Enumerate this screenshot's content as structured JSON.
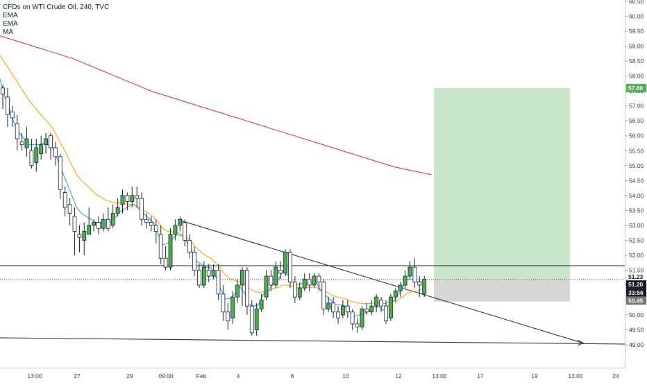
{
  "chart_data": {
    "type": "candlestick",
    "title": "CFDs on WTI Crude Oil, 240, TVC",
    "indicators": [
      "EMA",
      "EMA",
      "MA"
    ],
    "y_ticks": [
      "60.50",
      "60.00",
      "59.50",
      "59.00",
      "58.50",
      "58.00",
      "57.50",
      "57.00",
      "56.50",
      "56.00",
      "55.50",
      "55.00",
      "54.50",
      "54.00",
      "53.50",
      "53.00",
      "52.50",
      "52.00",
      "51.50",
      "51.00",
      "50.50",
      "50.00",
      "49.50",
      "49.00"
    ],
    "ylim": [
      48.85,
      60.75
    ],
    "x_ticks": [
      "13:00",
      "27",
      "29",
      "09:00",
      "Feb",
      "4",
      "6",
      "10",
      "12",
      "13:00",
      "17",
      "19",
      "13:00",
      "24"
    ],
    "price_tags": {
      "target": "57.60",
      "current": "51.23",
      "entry": "51.20",
      "countdown": "33:56",
      "stop": "50.45"
    },
    "position": {
      "target": 57.6,
      "entry": 51.2,
      "stop": 50.45
    },
    "horizontal_level": 51.65,
    "colors": {
      "up": "#4caf50",
      "down": "#ffffff",
      "wick": "#131722",
      "ema_fast": "#2196f3",
      "ema_slow": "#ff9800",
      "ma": "#c62828",
      "profit_zone": "#c8e6c9",
      "loss_zone": "#d6d6d6",
      "target_tag": "#4caf50",
      "stop_tag": "#757575",
      "line": "#131722"
    },
    "candles": [
      [
        57.6,
        57.4,
        57.7,
        56.9
      ],
      [
        57.3,
        56.7,
        57.6,
        56.3
      ],
      [
        56.8,
        56.6,
        57.0,
        56.3
      ],
      [
        56.4,
        55.9,
        56.7,
        55.5
      ],
      [
        55.8,
        55.7,
        56.1,
        55.5
      ],
      [
        55.6,
        55.9,
        56.3,
        55.3
      ],
      [
        55.5,
        55.0,
        55.9,
        54.9
      ],
      [
        55.1,
        55.6,
        55.9,
        54.8
      ],
      [
        55.4,
        55.7,
        56.0,
        55.2
      ],
      [
        55.7,
        55.9,
        56.1,
        55.4
      ],
      [
        56.0,
        55.6,
        56.1,
        55.2
      ],
      [
        55.6,
        55.3,
        55.8,
        55.0
      ],
      [
        55.3,
        54.2,
        55.4,
        53.9
      ],
      [
        54.1,
        53.6,
        54.3,
        53.3
      ],
      [
        53.7,
        53.4,
        53.9,
        53.0
      ],
      [
        53.3,
        52.8,
        53.6,
        52.0
      ],
      [
        52.7,
        52.6,
        53.0,
        52.1
      ],
      [
        52.5,
        52.8,
        53.1,
        52.0
      ],
      [
        52.7,
        53.0,
        53.6,
        52.7
      ],
      [
        53.0,
        53.1,
        53.2,
        52.8
      ],
      [
        53.1,
        52.9,
        53.3,
        52.7
      ],
      [
        52.9,
        53.2,
        53.4,
        52.8
      ],
      [
        53.2,
        52.9,
        53.6,
        52.8
      ],
      [
        53.0,
        53.4,
        53.7,
        52.9
      ],
      [
        53.4,
        53.6,
        53.9,
        53.3
      ],
      [
        53.7,
        54.0,
        54.2,
        53.4
      ],
      [
        54.0,
        53.8,
        54.1,
        53.5
      ],
      [
        53.8,
        54.0,
        54.3,
        53.6
      ],
      [
        54.0,
        53.9,
        54.3,
        53.6
      ],
      [
        53.9,
        53.2,
        54.1,
        53.0
      ],
      [
        53.2,
        53.1,
        53.4,
        52.9
      ],
      [
        53.1,
        53.0,
        53.3,
        52.8
      ],
      [
        53.0,
        52.8,
        53.2,
        52.4
      ],
      [
        52.7,
        51.9,
        53.0,
        51.7
      ],
      [
        51.9,
        51.6,
        52.3,
        51.5
      ],
      [
        51.6,
        52.7,
        52.9,
        51.5
      ],
      [
        52.7,
        53.0,
        53.2,
        52.5
      ],
      [
        53.0,
        53.2,
        53.3,
        52.8
      ],
      [
        53.1,
        52.5,
        53.2,
        52.3
      ],
      [
        52.5,
        52.1,
        52.7,
        51.9
      ],
      [
        52.1,
        51.5,
        52.3,
        51.3
      ],
      [
        51.5,
        51.0,
        51.7,
        50.9
      ],
      [
        51.0,
        51.6,
        51.8,
        50.9
      ],
      [
        51.5,
        51.3,
        51.7,
        51.1
      ],
      [
        51.3,
        51.5,
        51.7,
        51.2
      ],
      [
        51.5,
        50.7,
        51.7,
        50.5
      ],
      [
        50.7,
        50.1,
        51.0,
        49.8
      ],
      [
        50.1,
        49.8,
        50.4,
        49.5
      ],
      [
        49.9,
        50.6,
        50.8,
        49.7
      ],
      [
        50.6,
        51.0,
        51.2,
        50.4
      ],
      [
        51.0,
        51.5,
        51.6,
        50.3
      ],
      [
        51.5,
        50.3,
        51.6,
        50.0
      ],
      [
        50.3,
        49.4,
        50.5,
        49.3
      ],
      [
        49.5,
        50.2,
        50.4,
        49.3
      ],
      [
        50.2,
        50.5,
        50.7,
        50.1
      ],
      [
        50.6,
        51.3,
        51.5,
        50.5
      ],
      [
        51.3,
        51.0,
        51.5,
        50.8
      ],
      [
        51.0,
        51.6,
        51.8,
        50.9
      ],
      [
        51.5,
        51.4,
        51.8,
        51.2
      ],
      [
        51.4,
        52.1,
        52.2,
        51.3
      ],
      [
        52.1,
        51.1,
        52.2,
        50.9
      ],
      [
        51.1,
        50.6,
        51.3,
        50.4
      ],
      [
        50.6,
        50.9,
        51.1,
        50.5
      ],
      [
        50.9,
        51.2,
        51.4,
        50.8
      ],
      [
        51.2,
        51.0,
        51.4,
        50.8
      ],
      [
        51.0,
        51.3,
        51.4,
        50.9
      ],
      [
        51.3,
        51.1,
        51.4,
        50.8
      ],
      [
        51.1,
        50.2,
        51.2,
        50.0
      ],
      [
        50.2,
        50.4,
        50.6,
        50.1
      ],
      [
        50.4,
        50.1,
        50.6,
        49.9
      ],
      [
        50.1,
        49.9,
        50.3,
        49.7
      ],
      [
        50.0,
        50.3,
        50.5,
        49.9
      ],
      [
        50.3,
        50.1,
        50.5,
        49.9
      ],
      [
        50.1,
        49.7,
        50.2,
        49.5
      ],
      [
        49.7,
        49.6,
        49.9,
        49.4
      ],
      [
        49.6,
        50.2,
        50.3,
        49.5
      ],
      [
        50.2,
        50.1,
        50.4,
        50.0
      ],
      [
        50.1,
        50.3,
        50.5,
        50.0
      ],
      [
        50.3,
        50.6,
        50.7,
        50.1
      ],
      [
        50.5,
        50.3,
        50.6,
        50.1
      ],
      [
        50.3,
        49.8,
        50.5,
        49.7
      ],
      [
        49.9,
        50.6,
        50.7,
        49.8
      ],
      [
        50.6,
        50.8,
        50.9,
        50.4
      ],
      [
        50.8,
        51.0,
        51.1,
        50.6
      ],
      [
        51.0,
        51.3,
        51.5,
        50.9
      ],
      [
        51.3,
        51.6,
        51.8,
        51.2
      ],
      [
        51.6,
        51.1,
        51.9,
        50.9
      ],
      [
        51.1,
        51.0,
        51.3,
        50.6
      ],
      [
        50.7,
        51.2,
        51.3,
        50.6
      ]
    ],
    "ema_fast": [
      57.9,
      57.3,
      56.9,
      56.4,
      56.1,
      55.9,
      55.7,
      55.7,
      55.7,
      55.75,
      55.72,
      55.6,
      55.2,
      54.8,
      54.4,
      54.0,
      53.6,
      53.4,
      53.3,
      53.2,
      53.1,
      53.1,
      53.05,
      53.1,
      53.25,
      53.45,
      53.55,
      53.65,
      53.7,
      53.55,
      53.4,
      53.25,
      53.1,
      52.7,
      52.35,
      52.4,
      52.55,
      52.7,
      52.65,
      52.45,
      52.15,
      51.8,
      51.7,
      51.6,
      51.58,
      51.3,
      50.9,
      50.55,
      50.55,
      50.7,
      50.95,
      50.75,
      50.35,
      50.3,
      50.35,
      50.7,
      50.8,
      51.05,
      51.15,
      51.45,
      51.35,
      51.1,
      51.0,
      51.05,
      51.05,
      51.1,
      51.1,
      50.8,
      50.65,
      50.5,
      50.35,
      50.35,
      50.3,
      50.1,
      49.95,
      50.0,
      50.05,
      50.12,
      50.25,
      50.28,
      50.15,
      50.3,
      50.45,
      50.65,
      50.9,
      51.2,
      51.2,
      51.1,
      51.12
    ],
    "ema_slow": [
      58.7,
      58.45,
      58.2,
      57.95,
      57.7,
      57.45,
      57.2,
      57.0,
      56.8,
      56.62,
      56.45,
      56.25,
      55.95,
      55.65,
      55.35,
      55.0,
      54.7,
      54.5,
      54.35,
      54.2,
      54.05,
      53.95,
      53.85,
      53.8,
      53.75,
      53.75,
      53.72,
      53.7,
      53.68,
      53.6,
      53.5,
      53.4,
      53.3,
      53.1,
      52.9,
      52.8,
      52.78,
      52.76,
      52.7,
      52.6,
      52.45,
      52.25,
      52.1,
      51.98,
      51.9,
      51.75,
      51.55,
      51.35,
      51.22,
      51.15,
      51.12,
      51.05,
      50.9,
      50.8,
      50.75,
      50.78,
      50.8,
      50.88,
      50.92,
      51.0,
      51.0,
      50.95,
      50.92,
      50.92,
      50.92,
      50.93,
      50.93,
      50.85,
      50.78,
      50.7,
      50.62,
      50.58,
      50.55,
      50.48,
      50.42,
      50.4,
      50.38,
      50.38,
      50.4,
      50.4,
      50.38,
      50.4,
      50.45,
      50.5,
      50.6,
      50.72,
      50.78,
      50.8,
      50.85
    ],
    "ma": [
      59.35,
      59.27,
      59.2,
      59.12,
      59.05,
      58.97,
      58.9,
      58.82,
      58.75,
      58.67,
      58.6,
      58.5,
      58.4,
      58.3,
      58.2,
      58.1,
      58.0,
      57.9,
      57.8,
      57.7,
      57.6,
      57.5,
      57.42,
      57.35,
      57.27,
      57.2,
      57.12,
      57.05,
      56.97,
      56.9,
      56.82,
      56.75,
      56.67,
      56.6,
      56.52,
      56.45,
      56.37,
      56.3,
      56.22,
      56.15,
      56.07,
      56.0,
      55.92,
      55.85,
      55.77,
      55.7,
      55.62,
      55.55,
      55.47,
      55.4,
      55.32,
      55.25,
      55.17,
      55.1,
      55.02,
      54.95,
      54.9,
      54.85,
      54.8,
      54.75,
      54.7
    ]
  }
}
